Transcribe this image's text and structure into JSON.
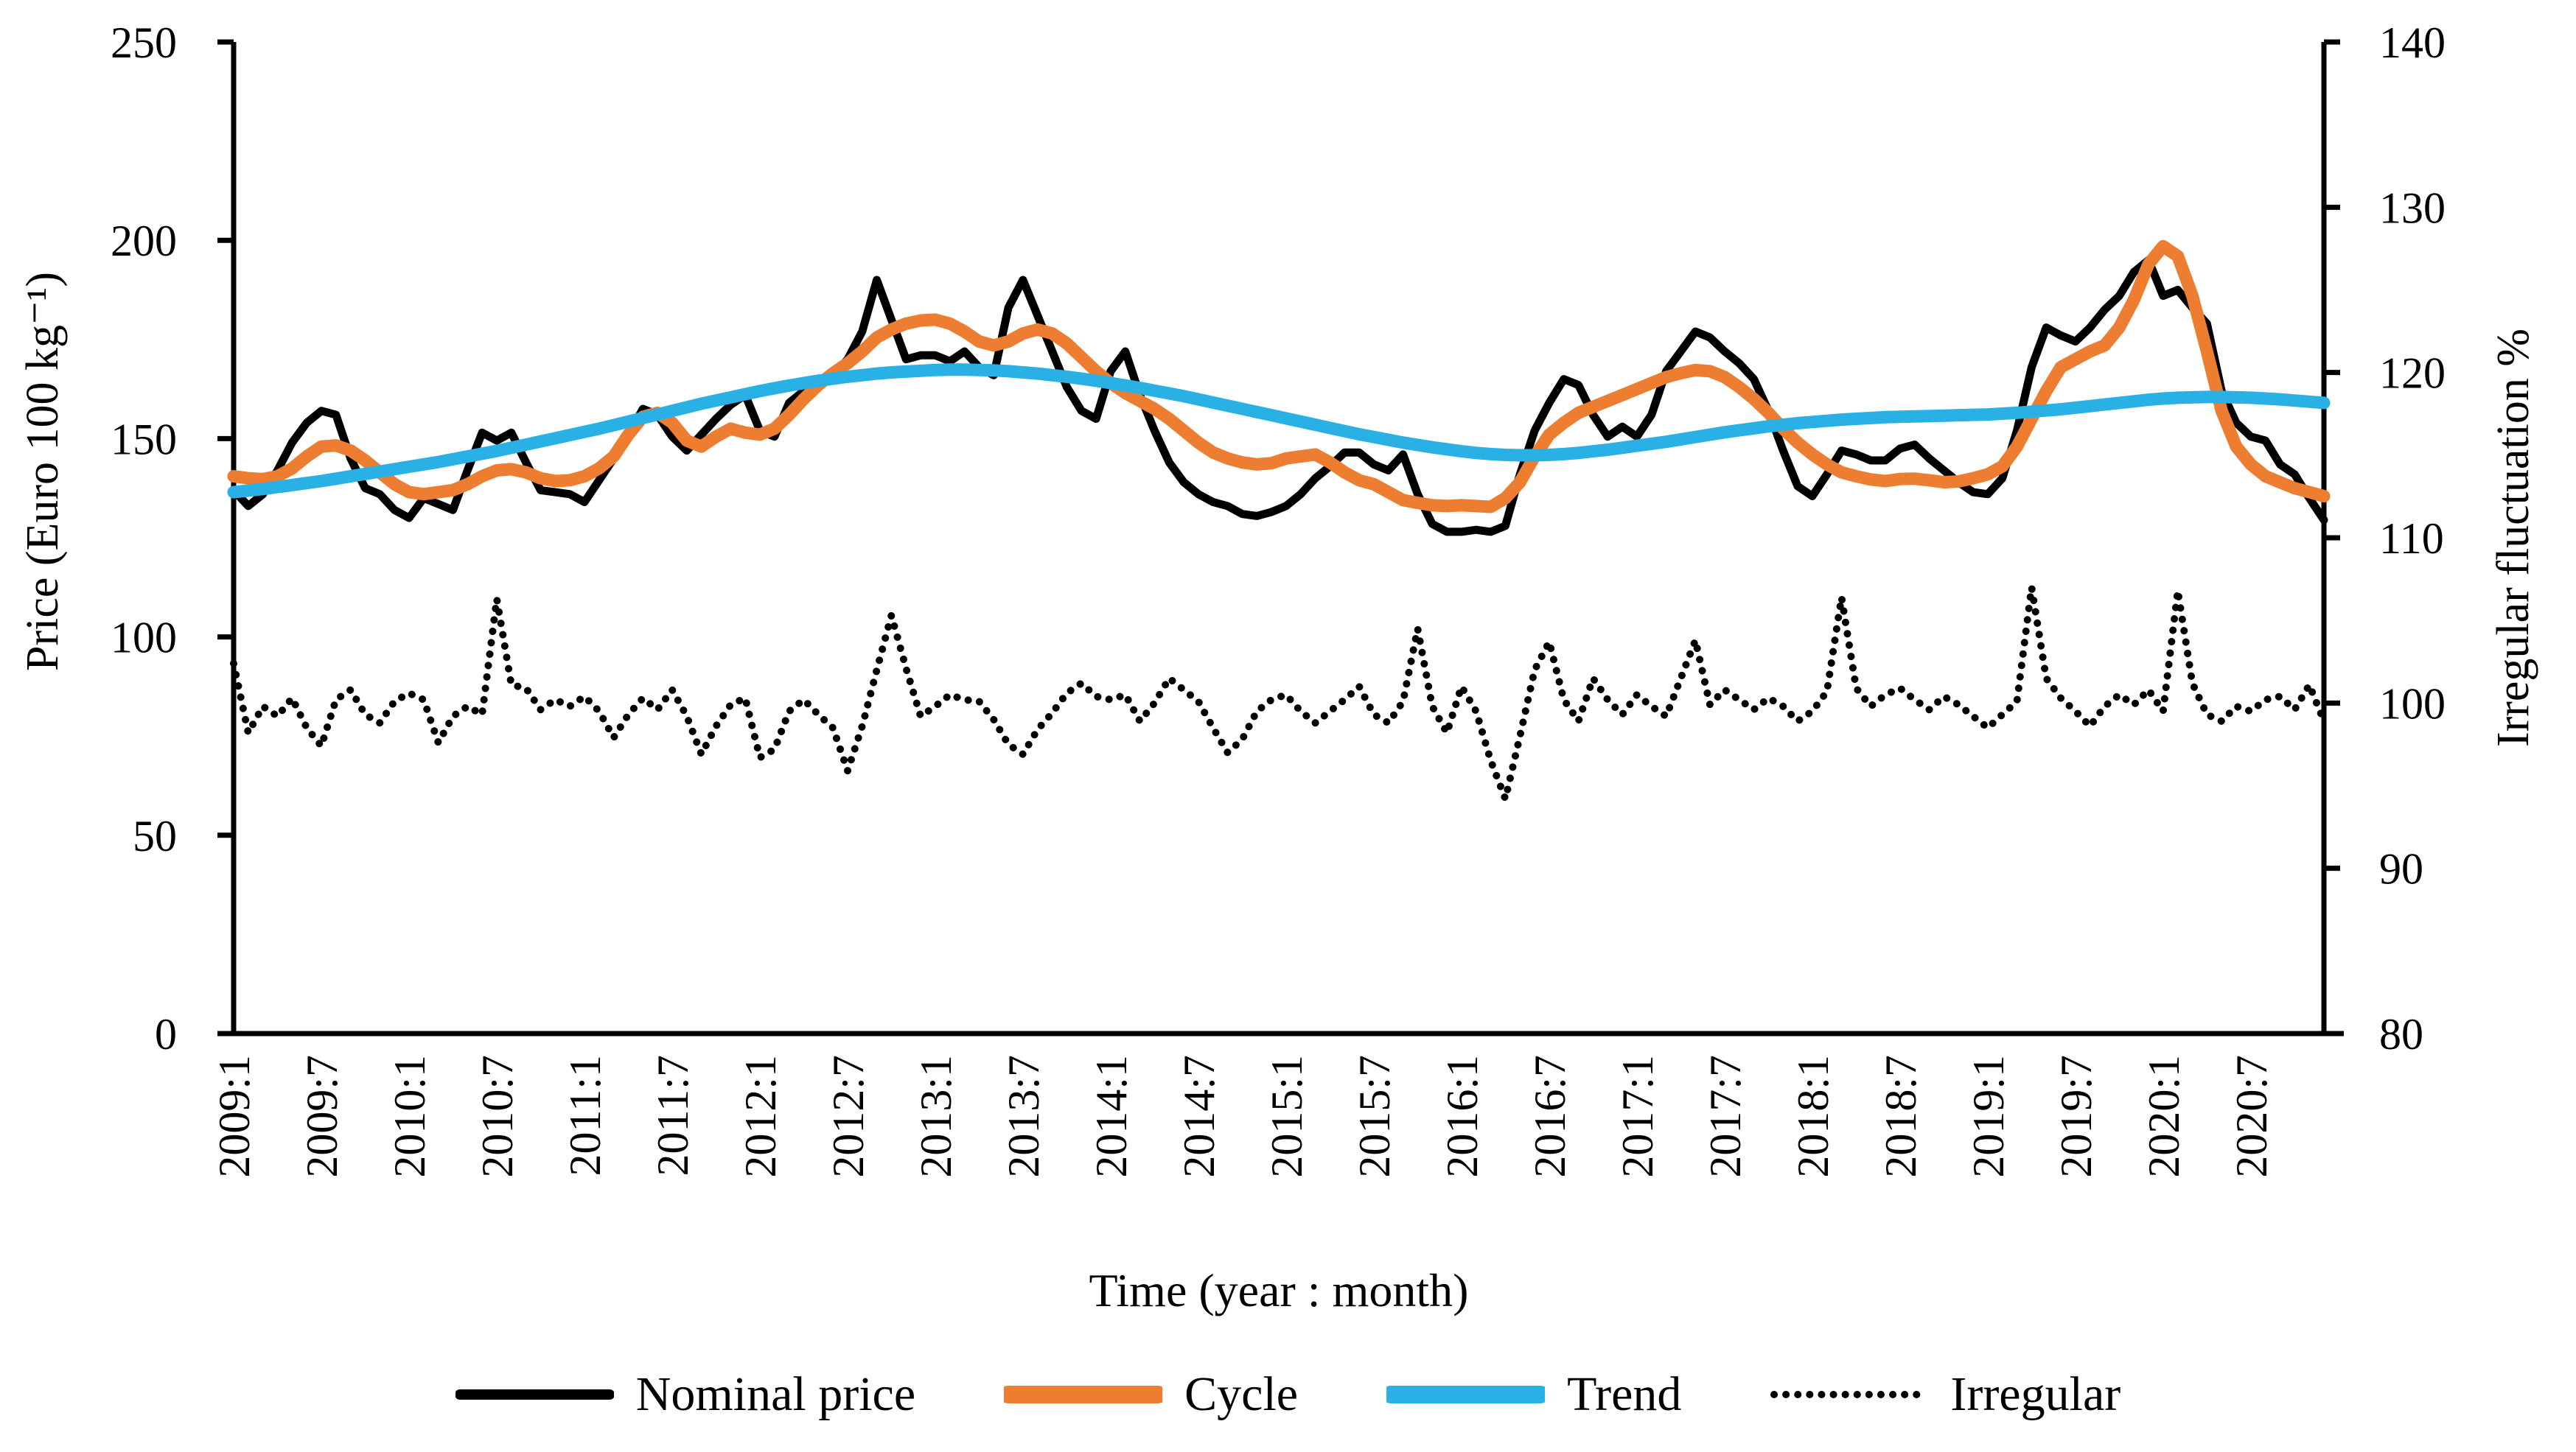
{
  "chart_data": {
    "type": "line",
    "title": "",
    "xlabel": "Time (year : month)",
    "ylabel_left": "Price (Euro 100 kg⁻¹)",
    "ylabel_right": "Irregular fluctuation %",
    "x_tick_labels": [
      "2009:1",
      "2009:7",
      "2010:1",
      "2010:7",
      "2011:1",
      "2011:7",
      "2012:1",
      "2012:7",
      "2013:1",
      "2013:7",
      "2014:1",
      "2014:7",
      "2015:1",
      "2015:7",
      "2016:1",
      "2016:7",
      "2017:1",
      "2017:7",
      "2018:1",
      "2018:7",
      "2019:1",
      "2019:7",
      "2020:1",
      "2020:7"
    ],
    "x_tick_every": 6,
    "n_points": 144,
    "x_range_months": "2009:1 to 2020:12",
    "y_left": {
      "min": 0,
      "max": 250,
      "ticks": [
        0,
        50,
        100,
        150,
        200,
        250
      ]
    },
    "y_right": {
      "min": 80,
      "max": 140,
      "ticks": [
        80,
        90,
        100,
        110,
        120,
        130,
        140
      ]
    },
    "grid": false,
    "legend_position": "bottom",
    "series": [
      {
        "name": "Nominal price",
        "axis": "left",
        "color": "#000000",
        "style": "solid",
        "width": 11,
        "values": [
          137,
          133,
          136,
          142,
          149,
          154,
          157,
          156,
          145,
          137.5,
          136,
          132,
          130,
          135,
          133.5,
          132,
          142,
          151.5,
          149.5,
          151.5,
          144,
          137,
          136.5,
          136,
          134,
          139.5,
          145,
          151,
          157.5,
          156,
          150.5,
          147,
          151,
          155,
          158.5,
          161,
          152,
          150.5,
          159,
          162,
          164,
          166,
          170,
          177,
          190,
          180,
          170,
          171,
          171,
          169.5,
          172,
          168,
          166,
          183,
          190,
          181,
          172,
          163,
          157,
          155,
          167,
          172,
          161,
          152,
          144,
          139,
          136,
          134,
          133,
          131,
          130.5,
          131.5,
          133,
          136,
          140,
          143,
          146.5,
          146.5,
          143.5,
          142,
          146,
          136,
          128.5,
          126.5,
          126.5,
          127,
          126.5,
          128,
          141,
          152,
          159,
          165,
          163.5,
          156,
          150.5,
          153,
          150.5,
          156,
          167,
          172,
          177,
          175.5,
          172,
          169,
          165,
          157,
          147,
          138,
          135.5,
          141,
          147,
          146,
          144.5,
          144.5,
          147.5,
          148.5,
          145,
          142,
          139,
          136.5,
          136,
          140,
          152,
          168,
          178,
          176,
          174.5,
          178,
          182.5,
          186,
          192,
          195,
          186,
          187.5,
          183,
          179,
          162,
          154,
          150.5,
          149.5,
          143.5,
          141,
          135,
          129.5
        ]
      },
      {
        "name": "Cycle",
        "axis": "left",
        "color": "#ED7D31",
        "style": "solid",
        "width": 17,
        "values": [
          140.5,
          140,
          139.8,
          140.5,
          142.5,
          145.5,
          148,
          148.3,
          147,
          144.5,
          141.5,
          138.5,
          136.5,
          136,
          136.5,
          137,
          138.5,
          140.5,
          142,
          142.3,
          141.5,
          140,
          139.3,
          139.5,
          140.5,
          142.5,
          145.5,
          151,
          155.5,
          156.5,
          154,
          149.5,
          148,
          150.5,
          152.5,
          151.5,
          151,
          152.5,
          156,
          160,
          163.5,
          166.5,
          169,
          172,
          175.5,
          177.5,
          179,
          179.8,
          180,
          179,
          177,
          174.5,
          173.5,
          174.5,
          176.5,
          177.5,
          176.5,
          174,
          170.5,
          167,
          164,
          161.5,
          159.5,
          157.5,
          155,
          152,
          149,
          146.5,
          145,
          144,
          143.5,
          143.8,
          145,
          145.5,
          146,
          144,
          141.5,
          139.5,
          138.5,
          136.5,
          134.5,
          133.8,
          133.2,
          133,
          133.2,
          133,
          132.8,
          135,
          139,
          145.5,
          151,
          154,
          156.5,
          158,
          159.5,
          161,
          162.5,
          164,
          165.5,
          166.5,
          167.3,
          167,
          165.5,
          163,
          160,
          156.5,
          152.5,
          149,
          146,
          143.5,
          141.5,
          140.5,
          139.7,
          139.3,
          139.8,
          139.9,
          139.5,
          139,
          139.2,
          140,
          141,
          143,
          148,
          155,
          162,
          168,
          170,
          172,
          173.5,
          178,
          185,
          194,
          198.5,
          196,
          186,
          172,
          157,
          148,
          143.5,
          140.5,
          139,
          137.5,
          136.5,
          135.5
        ]
      },
      {
        "name": "Trend",
        "axis": "left",
        "color": "#29B1E6",
        "style": "solid",
        "width": 17,
        "values": [
          136.5,
          136.9,
          137.3,
          137.8,
          138.3,
          138.8,
          139.3,
          139.9,
          140.5,
          141.1,
          141.7,
          142.3,
          142.9,
          143.5,
          144.1,
          144.8,
          145.5,
          146.2,
          146.9,
          147.7,
          148.5,
          149.3,
          150.1,
          150.9,
          151.7,
          152.5,
          153.4,
          154.3,
          155.2,
          156.1,
          157,
          157.9,
          158.8,
          159.6,
          160.4,
          161.2,
          162,
          162.7,
          163.4,
          164,
          164.6,
          165.1,
          165.6,
          166,
          166.4,
          166.7,
          166.9,
          167.1,
          167.3,
          167.4,
          167.4,
          167.3,
          167.2,
          167,
          166.7,
          166.4,
          166,
          165.6,
          165.1,
          164.6,
          164,
          163.4,
          162.8,
          162.1,
          161.4,
          160.7,
          159.9,
          159.1,
          158.3,
          157.5,
          156.7,
          155.9,
          155.1,
          154.3,
          153.5,
          152.7,
          151.9,
          151.1,
          150.4,
          149.7,
          149,
          148.4,
          147.8,
          147.3,
          146.8,
          146.4,
          146.1,
          145.9,
          145.8,
          145.8,
          145.9,
          146.1,
          146.4,
          146.8,
          147.2,
          147.7,
          148.2,
          148.7,
          149.2,
          149.8,
          150.4,
          151,
          151.6,
          152.1,
          152.6,
          153.1,
          153.5,
          153.9,
          154.2,
          154.5,
          154.8,
          155,
          155.2,
          155.4,
          155.5,
          155.6,
          155.7,
          155.8,
          155.9,
          156,
          156.1,
          156.3,
          156.5,
          156.8,
          157.1,
          157.4,
          157.8,
          158.2,
          158.6,
          159,
          159.4,
          159.8,
          160.1,
          160.3,
          160.4,
          160.5,
          160.5,
          160.4,
          160.3,
          160.1,
          159.9,
          159.6,
          159.3,
          159
        ]
      },
      {
        "name": "Irregular",
        "axis": "right",
        "color": "#000000",
        "style": "dotted",
        "width": 10,
        "values": [
          102.4,
          98.2,
          99.8,
          99.2,
          100.3,
          98.5,
          97.4,
          100.2,
          100.8,
          99.3,
          98.8,
          100.1,
          100.6,
          100.2,
          97.6,
          99.2,
          99.8,
          99.3,
          106.3,
          101.1,
          100.9,
          99.6,
          100.2,
          99.8,
          100.4,
          99.5,
          97.9,
          99.3,
          100.3,
          99.6,
          100.8,
          99.2,
          96.9,
          98.6,
          99.9,
          100.3,
          96.7,
          97.2,
          99.5,
          100.2,
          99.3,
          98.5,
          95.9,
          98.6,
          102,
          105.3,
          102.1,
          99.2,
          99.8,
          100.5,
          100.2,
          100.1,
          99,
          97.5,
          96.9,
          98.4,
          99.4,
          100.6,
          101.2,
          100.4,
          100.2,
          100.5,
          98.9,
          100,
          101.5,
          100.8,
          100.1,
          98.5,
          97,
          97.8,
          99.5,
          100.2,
          100.5,
          99.5,
          98.8,
          99.5,
          100.2,
          101,
          99.3,
          98.8,
          100.1,
          104.5,
          99.8,
          98.2,
          101,
          99.5,
          96.5,
          94.2,
          98,
          102,
          103.7,
          100.2,
          98.9,
          101.5,
          100.2,
          99.3,
          100.5,
          99.8,
          99.2,
          101.5,
          103.8,
          99.9,
          100.8,
          100.2,
          99.6,
          100.3,
          99.8,
          98.9,
          99.5,
          100.7,
          106.4,
          100.9,
          99.8,
          100.5,
          100.9,
          100.2,
          99.6,
          100.4,
          99.9,
          99.2,
          98.5,
          99.3,
          100.1,
          107,
          101.5,
          100.3,
          99.5,
          98.6,
          99.8,
          100.5,
          99.9,
          100.8,
          99.5,
          106.8,
          101.2,
          99.3,
          98.9,
          99.8,
          99.5,
          100.2,
          100.4,
          99.6,
          101.1,
          98.9
        ]
      }
    ]
  },
  "titles": {
    "x_title": "Time (year : month)",
    "y_left_title": "Price (Euro 100 kg⁻¹)",
    "y_right_title": "Irregular fluctuation %"
  }
}
